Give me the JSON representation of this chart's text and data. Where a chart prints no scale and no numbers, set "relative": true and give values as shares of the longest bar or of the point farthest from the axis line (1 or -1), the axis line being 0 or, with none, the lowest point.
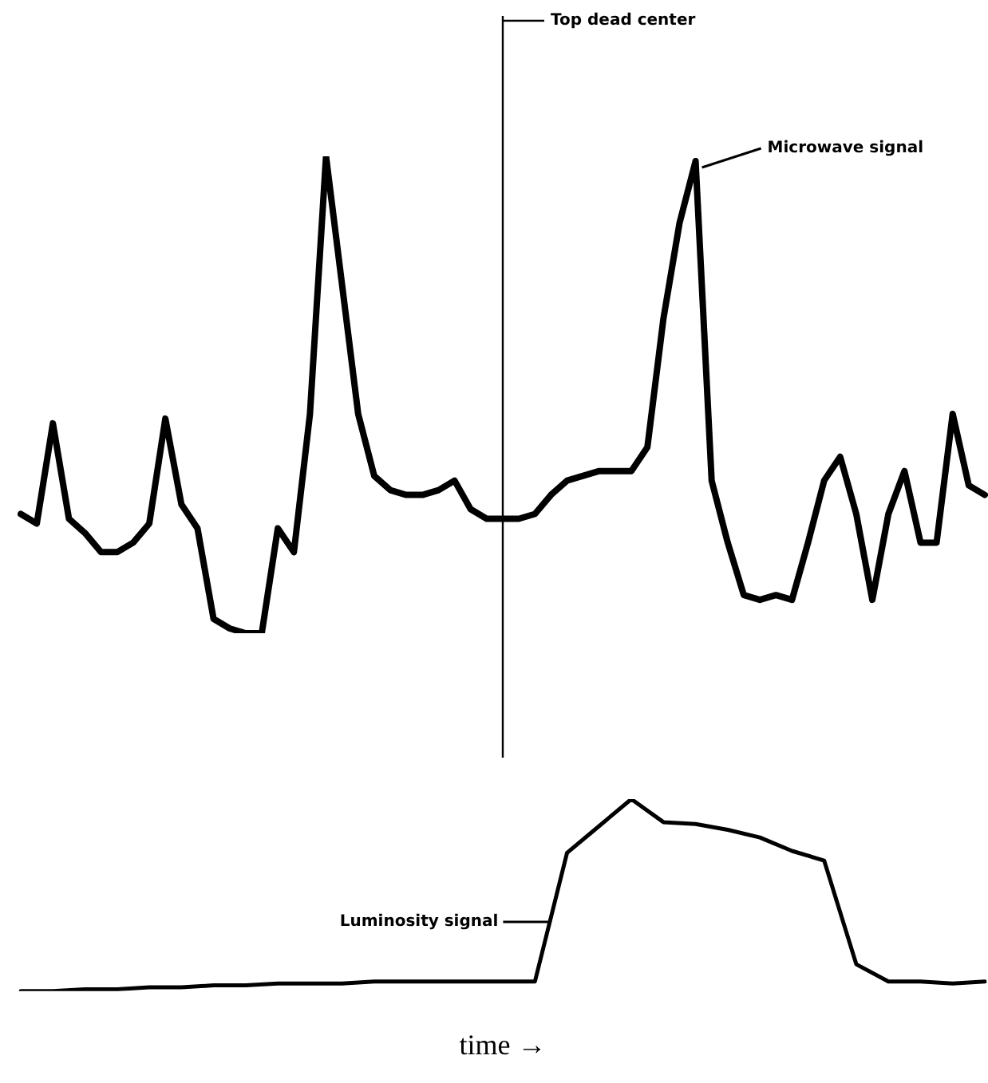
{
  "chart_data": [
    {
      "type": "line",
      "relative": true,
      "legend": "top right",
      "marker": "none",
      "line_style": "solid",
      "categories": [
        null,
        null,
        null,
        null,
        null,
        null,
        null,
        null,
        null,
        null,
        null,
        null,
        null,
        null,
        null,
        null,
        null,
        null,
        null,
        null,
        null,
        null,
        null,
        null,
        null,
        null,
        null,
        null,
        null,
        null,
        null,
        null,
        null,
        null,
        null,
        null,
        null,
        null,
        null,
        null,
        null,
        null,
        null,
        null,
        null,
        null,
        null,
        null,
        null,
        null,
        null,
        null,
        null,
        null,
        null,
        null,
        null,
        null,
        null,
        null,
        null
      ],
      "annotations": [
        "Top dead center"
      ],
      "series": [
        {
          "name": "Microwave signal",
          "color": "#000000",
          "values": [
            0.25,
            0.23,
            0.44,
            0.24,
            0.21,
            0.17,
            0.17,
            0.19,
            0.23,
            0.45,
            0.27,
            0.22,
            0.03,
            0.01,
            0,
            0,
            0.22,
            0.17,
            0.46,
            1,
            0.73,
            0.46,
            0.33,
            0.3,
            0.29,
            0.29,
            0.3,
            0.32,
            0.26,
            0.24,
            0.24,
            0.24,
            0.25,
            0.29,
            0.32,
            0.33,
            0.34,
            0.34,
            0.34,
            0.39,
            0.66,
            0.86,
            0.99,
            0.32,
            0.19,
            0.08,
            0.07,
            0.08,
            0.07,
            0.19,
            0.32,
            0.37,
            0.25,
            0.07,
            0.25,
            0.34,
            0.19,
            0.19,
            0.46,
            0.31,
            0.29
          ]
        }
      ]
    },
    {
      "type": "line",
      "relative": true,
      "legend": "left",
      "marker": "none",
      "line_style": "solid",
      "xlabel": "time →",
      "categories": [
        null,
        null,
        null,
        null,
        null,
        null,
        null,
        null,
        null,
        null,
        null,
        null,
        null,
        null,
        null,
        null,
        null,
        null,
        null,
        null,
        null,
        null,
        null,
        null,
        null,
        null,
        null,
        null,
        null,
        null,
        null
      ],
      "series": [
        {
          "name": "Luminosity signal",
          "color": "#000000",
          "values": [
            0,
            0,
            0.01,
            0.01,
            0.02,
            0.02,
            0.03,
            0.03,
            0.04,
            0.04,
            0.04,
            0.05,
            0.05,
            0.05,
            0.05,
            0.05,
            0.05,
            0.72,
            0.86,
            1,
            0.88,
            0.87,
            0.84,
            0.8,
            0.73,
            0.68,
            0.14,
            0.05,
            0.05,
            0.04,
            0.05
          ]
        }
      ]
    }
  ]
}
